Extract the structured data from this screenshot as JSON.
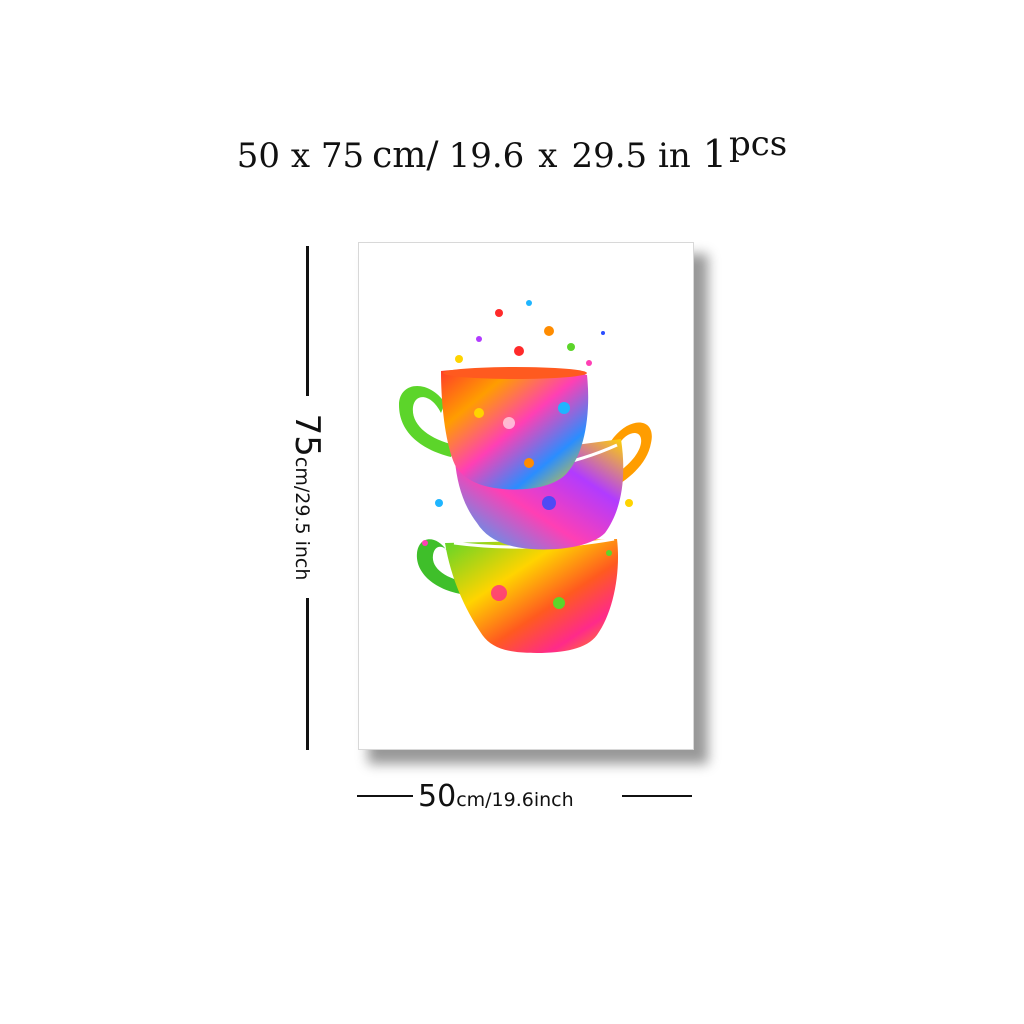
{
  "title": {
    "part1": "50 x 75",
    "part2": "cm/",
    "part3": "19.6",
    "part4": "x",
    "part5": "29.5 in",
    "part6": "1",
    "part7": "pcs"
  },
  "height_label": {
    "value": "75",
    "unit": "cm/29.5 inch"
  },
  "width_label": {
    "value": "50",
    "unit": "cm/19.6inch"
  },
  "artwork": {
    "subject": "stacked-teacups-watercolor-splatter",
    "palette": [
      "#ff2a2a",
      "#ff8c00",
      "#ffd400",
      "#5cd52a",
      "#1fb5ff",
      "#2a4dff",
      "#b13bff",
      "#ff3fb4"
    ]
  }
}
